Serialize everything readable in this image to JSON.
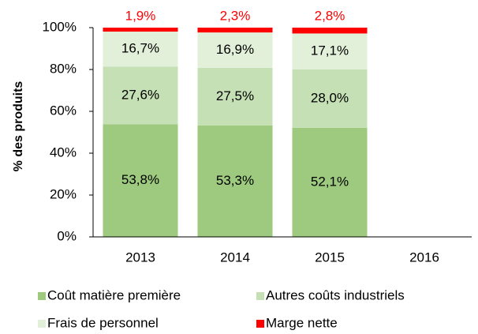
{
  "chart_data": {
    "type": "stacked_bar",
    "categories": [
      "2013",
      "2014",
      "2015",
      "2016"
    ],
    "y_label": "% des produits",
    "series": [
      {
        "name": "Coût matière première",
        "color": "#9dca7e",
        "values": [
          53.8,
          53.3,
          52.1,
          null
        ],
        "value_labels": [
          "53,8%",
          "53,3%",
          "52,1%",
          null
        ]
      },
      {
        "name": "Autres coûts industriels",
        "color": "#c5e0b4",
        "values": [
          27.6,
          27.5,
          28.0,
          null
        ],
        "value_labels": [
          "27,6%",
          "27,5%",
          "28,0%",
          null
        ]
      },
      {
        "name": "Frais de personnel",
        "color": "#e2f0d9",
        "values": [
          16.7,
          16.9,
          17.1,
          null
        ],
        "value_labels": [
          "16,7%",
          "16,9%",
          "17,1%",
          null
        ]
      },
      {
        "name": "Marge nette",
        "color": "#ff0000",
        "values": [
          1.9,
          2.3,
          2.8,
          null
        ],
        "value_labels": [
          "1,9%",
          "2,3%",
          "2,8%",
          null
        ]
      }
    ],
    "ylim": [
      0,
      100
    ],
    "yticks": [
      {
        "value": 0,
        "label": "0%"
      },
      {
        "value": 20,
        "label": "20%"
      },
      {
        "value": 40,
        "label": "40%"
      },
      {
        "value": 60,
        "label": "60%"
      },
      {
        "value": 80,
        "label": "80%"
      },
      {
        "value": 100,
        "label": "100%"
      }
    ],
    "legend": "bottom"
  }
}
